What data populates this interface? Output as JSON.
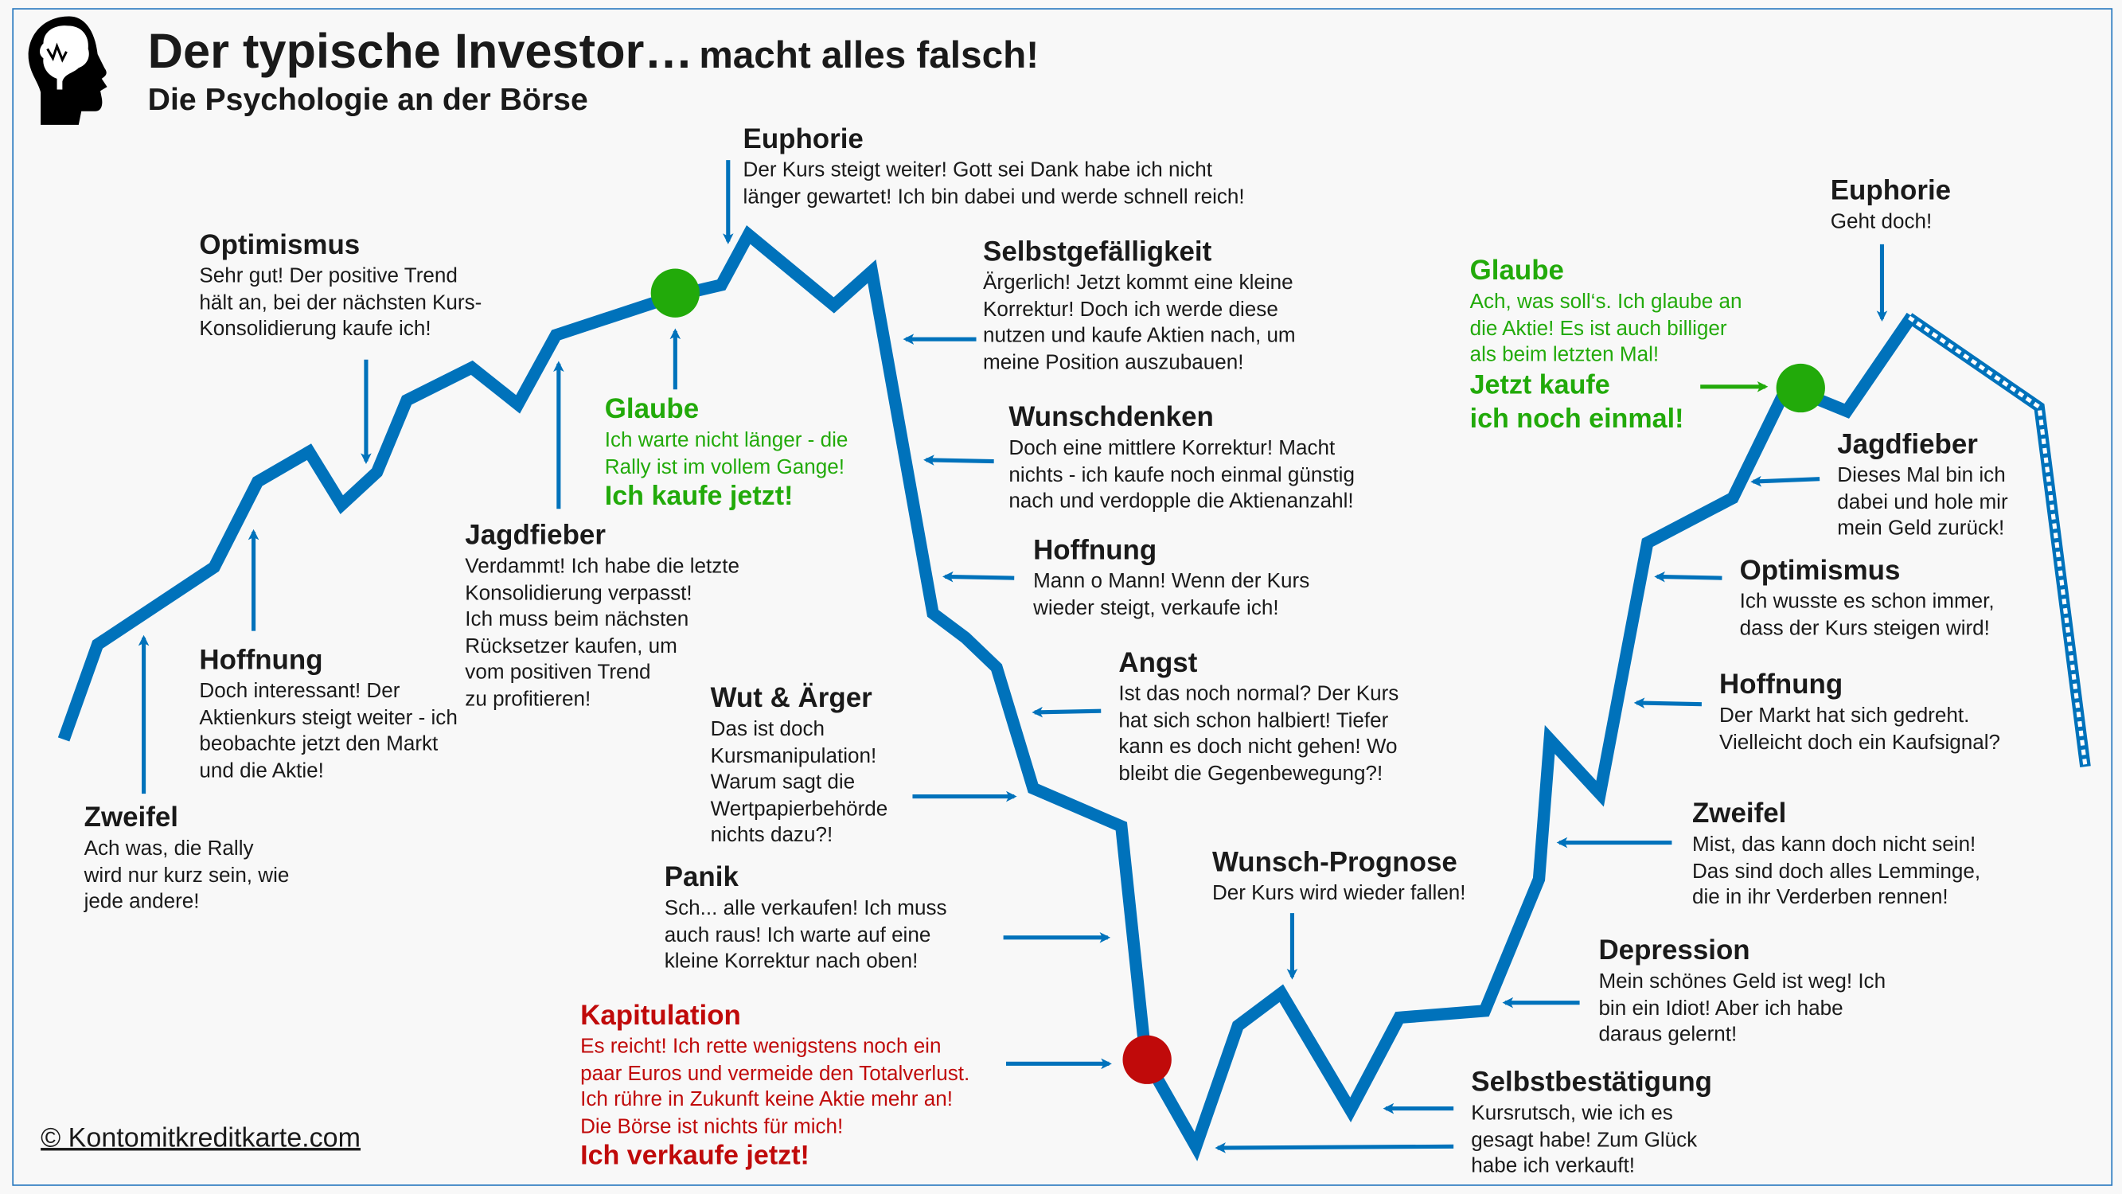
{
  "header": {
    "title_main": "Der typische Investor…",
    "title_tail": "macht alles falsch!",
    "subtitle": "Die Psychologie an der Börse",
    "logo_icon": "head-brain-icon"
  },
  "colors": {
    "line": "#0072bb",
    "buy": "#22aa0a",
    "sell": "#c00a0a"
  },
  "phases": [
    {
      "id": "zweifel-1",
      "title": "Zweifel",
      "lines": [
        "Ach was, die Rally",
        "wird nur kurz sein, wie",
        "jede andere!"
      ]
    },
    {
      "id": "hoffnung-1",
      "title": "Hoffnung",
      "lines": [
        "Doch interessant! Der",
        "Aktienkurs steigt weiter - ich",
        "beobachte jetzt den Markt",
        "und die Aktie!"
      ]
    },
    {
      "id": "optimismus-1",
      "title": "Optimismus",
      "lines": [
        "Sehr gut! Der positive Trend",
        "hält an, bei der nächsten Kurs-",
        "Konsolidierung kaufe ich!"
      ]
    },
    {
      "id": "jagdfieber-1",
      "title": "Jagdfieber",
      "lines": [
        "Verdammt! Ich habe die letzte",
        "Konsolidierung verpasst!",
        "Ich muss beim nächsten",
        "Rücksetzer kaufen, um",
        "vom positiven Trend",
        "zu profitieren!"
      ]
    },
    {
      "id": "glaube-1",
      "title": "Glaube",
      "lines": [
        "Ich warte nicht länger - die",
        "Rally ist im vollem Gange!"
      ],
      "action": [
        "Ich kaufe jetzt!"
      ]
    },
    {
      "id": "euphorie-1",
      "title": "Euphorie",
      "lines": [
        "Der Kurs steigt weiter! Gott sei Dank habe ich nicht",
        "länger gewartet! Ich bin dabei und werde schnell reich!"
      ]
    },
    {
      "id": "selbstgefaelligkeit",
      "title": "Selbstgefälligkeit",
      "lines": [
        "Ärgerlich! Jetzt kommt eine kleine",
        "Korrektur! Doch ich werde diese",
        "nutzen und kaufe Aktien nach, um",
        "meine Position auszubauen!"
      ]
    },
    {
      "id": "wunschdenken",
      "title": "Wunschdenken",
      "lines": [
        "Doch eine mittlere Korrektur! Macht",
        "nichts - ich kaufe noch einmal günstig",
        "nach und verdopple die Aktienanzahl!"
      ]
    },
    {
      "id": "hoffnung-2",
      "title": "Hoffnung",
      "lines": [
        "Mann o Mann! Wenn der Kurs",
        "wieder steigt, verkaufe ich!"
      ]
    },
    {
      "id": "angst",
      "title": "Angst",
      "lines": [
        "Ist das noch normal? Der Kurs",
        "hat sich schon halbiert! Tiefer",
        "kann es doch nicht gehen! Wo",
        "bleibt die Gegenbewegung?!"
      ]
    },
    {
      "id": "wut",
      "title": "Wut & Ärger",
      "lines": [
        "Das ist doch",
        "Kursmanipulation!",
        "Warum sagt die",
        "Wertpapierbehörde",
        "nichts dazu?!"
      ]
    },
    {
      "id": "panik",
      "title": "Panik",
      "lines": [
        "Sch... alle verkaufen! Ich muss",
        "auch raus! Ich warte auf eine",
        "kleine Korrektur nach oben!"
      ]
    },
    {
      "id": "kapitulation",
      "title": "Kapitulation",
      "lines": [
        "Es reicht! Ich rette wenigstens noch ein",
        "paar Euros und vermeide den Totalverlust.",
        "Ich rühre in Zukunft keine Aktie mehr an!",
        "Die Börse ist nichts für mich!"
      ],
      "action": [
        "Ich verkaufe jetzt!"
      ]
    },
    {
      "id": "wunsch-prognose",
      "title": "Wunsch-Prognose",
      "lines": [
        "Der Kurs wird wieder fallen!"
      ]
    },
    {
      "id": "selbstbestaetigung",
      "title": "Selbstbestätigung",
      "lines": [
        "Kursrutsch, wie ich es",
        "gesagt habe! Zum Glück",
        "habe ich verkauft!"
      ]
    },
    {
      "id": "depression",
      "title": "Depression",
      "lines": [
        "Mein schönes Geld ist weg! Ich",
        "bin ein Idiot! Aber ich habe",
        "daraus gelernt!"
      ]
    },
    {
      "id": "zweifel-2",
      "title": "Zweifel",
      "lines": [
        "Mist, das kann doch nicht sein!",
        "Das sind doch alles Lemminge,",
        "die in ihr Verderben rennen!"
      ]
    },
    {
      "id": "hoffnung-3",
      "title": "Hoffnung",
      "lines": [
        "Der Markt hat sich gedreht.",
        "Vielleicht doch ein Kaufsignal?"
      ]
    },
    {
      "id": "optimismus-2",
      "title": "Optimismus",
      "lines": [
        "Ich wusste es schon immer,",
        "dass der Kurs steigen wird!"
      ]
    },
    {
      "id": "jagdfieber-2",
      "title": "Jagdfieber",
      "lines": [
        "Dieses Mal bin ich",
        "dabei und hole mir",
        "mein Geld zurück!"
      ]
    },
    {
      "id": "glaube-2",
      "title": "Glaube",
      "lines": [
        "Ach, was soll‘s. Ich glaube an",
        "die Aktie! Es ist auch billiger",
        "als beim letzten Mal!"
      ],
      "action": [
        "Jetzt kaufe",
        "ich noch einmal!"
      ]
    },
    {
      "id": "euphorie-2",
      "title": "Euphorie",
      "lines": [
        "Geht doch!"
      ]
    }
  ],
  "footer": {
    "copyright": "© Kontomitkreditkarte.com"
  }
}
